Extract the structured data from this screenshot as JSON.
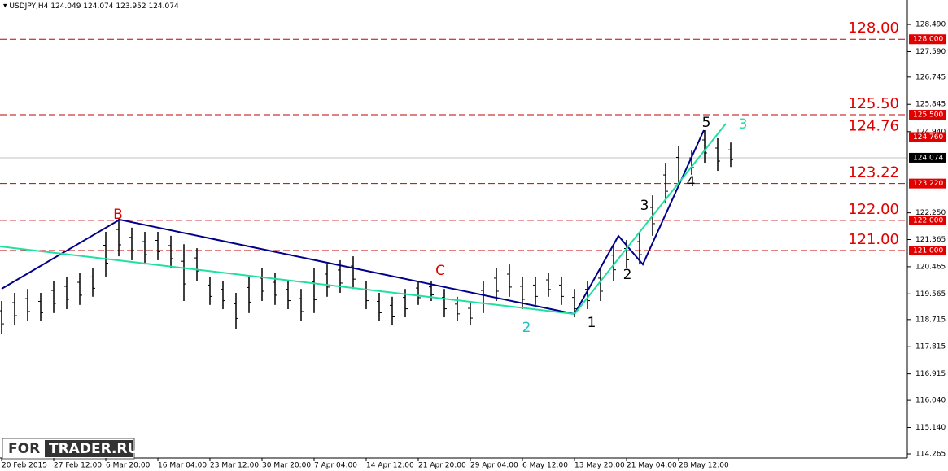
{
  "chart_data": {
    "type": "ohlc",
    "title": "USDJPY,H4  124.049 124.074 123.952 124.074",
    "categories": [
      "20 Feb 2015",
      "27 Feb 12:00",
      "6 Mar 20:00",
      "16 Mar 04:00",
      "23 Mar 12:00",
      "30 Mar 20:00",
      "7 Apr 04:00",
      "14 Apr 12:00",
      "21 Apr 20:00",
      "29 Apr 04:00",
      "6 May 12:00",
      "13 May 20:00",
      "21 May 04:00",
      "28 May 12:00"
    ],
    "high": [
      119.33,
      119.6,
      119.73,
      119.6,
      120.0,
      120.14,
      120.27,
      120.41,
      121.62,
      122.08,
      121.76,
      121.62,
      121.62,
      121.49,
      121.21,
      121.08,
      120.14,
      120.0,
      119.6,
      120.14,
      120.41,
      120.27,
      120.0,
      119.73,
      120.41,
      120.54,
      120.68,
      120.81,
      120.0,
      119.6,
      119.47,
      119.73,
      120.0,
      120.0,
      119.73,
      119.47,
      119.33,
      120.0,
      120.41,
      120.54,
      120.14,
      120.14,
      120.27,
      120.14,
      119.73,
      120.0,
      120.41,
      121.21,
      121.35,
      121.62,
      122.83,
      123.91,
      124.45,
      124.31,
      124.99,
      124.72,
      124.58
    ],
    "low": [
      118.25,
      118.52,
      118.66,
      118.66,
      118.93,
      119.06,
      119.2,
      119.47,
      120.14,
      120.81,
      120.68,
      120.54,
      120.68,
      120.41,
      119.33,
      120.0,
      119.2,
      119.06,
      118.39,
      118.93,
      119.33,
      119.2,
      119.06,
      118.66,
      118.93,
      119.47,
      119.6,
      119.73,
      119.06,
      118.66,
      118.52,
      118.79,
      119.2,
      119.33,
      118.79,
      118.66,
      118.52,
      118.93,
      119.33,
      119.47,
      119.06,
      119.2,
      119.47,
      119.2,
      118.79,
      119.06,
      119.33,
      120.0,
      120.41,
      120.54,
      121.49,
      122.56,
      123.24,
      123.51,
      123.91,
      123.64,
      123.77
    ],
    "color": "#000000",
    "ylim": [
      114.13,
      129.3
    ],
    "yticks": [
      {
        "value": 128.49,
        "label": "128.490"
      },
      {
        "value": 127.59,
        "label": "127.590"
      },
      {
        "value": 126.745,
        "label": "126.745"
      },
      {
        "value": 125.845,
        "label": "125.845"
      },
      {
        "value": 124.94,
        "label": "124.940"
      },
      {
        "value": 122.25,
        "label": "122.250"
      },
      {
        "value": 121.365,
        "label": "121.365"
      },
      {
        "value": 120.465,
        "label": "120.465"
      },
      {
        "value": 119.565,
        "label": "119.565"
      },
      {
        "value": 118.715,
        "label": "118.715"
      },
      {
        "value": 117.815,
        "label": "117.815"
      },
      {
        "value": 116.915,
        "label": "116.915"
      },
      {
        "value": 116.04,
        "label": "116.040"
      },
      {
        "value": 115.14,
        "label": "115.140"
      },
      {
        "value": 114.265,
        "label": "114.265"
      }
    ],
    "levels": [
      {
        "value": 128,
        "label": "128.00",
        "tag": "128.000"
      },
      {
        "value": 125.5,
        "label": "125.50",
        "tag": "125.500"
      },
      {
        "value": 124.76,
        "label": "124.76",
        "tag": "124.760"
      },
      {
        "value": 123.22,
        "label": "123.22",
        "tag": "123.220"
      },
      {
        "value": 122,
        "label": "122.00",
        "tag": "122.000"
      },
      {
        "value": 121,
        "label": "121.00",
        "tag": "121.000"
      }
    ],
    "level_color": "#c00000",
    "last_price": {
      "value": 124.074,
      "label": "124.074"
    },
    "wave_labels": [
      "B",
      "C",
      "2",
      "1",
      "2",
      "3",
      "4",
      "5",
      "3"
    ],
    "watermark": [
      "FOR",
      "TRADER.RU"
    ]
  }
}
